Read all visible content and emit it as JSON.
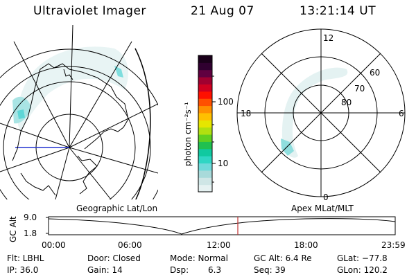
{
  "header": {
    "instrument": "Ultraviolet Imager",
    "date": "21 Aug 07",
    "time": "13:21:14 UT"
  },
  "colorbar": {
    "unit_label": "photon cm⁻²s⁻¹",
    "ticks": [
      "100",
      "10"
    ],
    "colors": [
      "#e6f2f2",
      "#cfe6e6",
      "#a8dada",
      "#6fdada",
      "#2fd6c4",
      "#10c9a0",
      "#20c050",
      "#60d020",
      "#b0e010",
      "#e6e600",
      "#ffc000",
      "#ff9000",
      "#ff5000",
      "#ff1000",
      "#d00020",
      "#a00030",
      "#600040",
      "#300030",
      "#1a001a"
    ]
  },
  "map_left": {
    "caption": "Geographic Lat/Lon"
  },
  "map_right": {
    "caption": "Apex MLat/MLT",
    "mlt_labels": {
      "top": "12",
      "left": "18",
      "right": "6",
      "bottom": "0"
    },
    "lat_labels": [
      "60",
      "70",
      "80"
    ]
  },
  "altitude_plot": {
    "ylabel": "GC Alt",
    "yticks": [
      "9.0",
      "1.8"
    ],
    "xticks": [
      "00:00",
      "06:00",
      "12:00",
      "18:00",
      "23:59"
    ],
    "marker_color": "#c03030"
  },
  "status": {
    "filter": "Flt: LBHL",
    "ip": "IP: 36.0",
    "door": "Door: Closed",
    "gain": "Gain: 14",
    "mode": "Mode: Normal",
    "dsp_label": "Dsp:",
    "dsp_value": "6.3",
    "gc_alt": "GC Alt: 6.4 Re",
    "seq": "Seq: 39",
    "glat": "GLat: −77.8",
    "glon": "GLon: 120.2"
  }
}
